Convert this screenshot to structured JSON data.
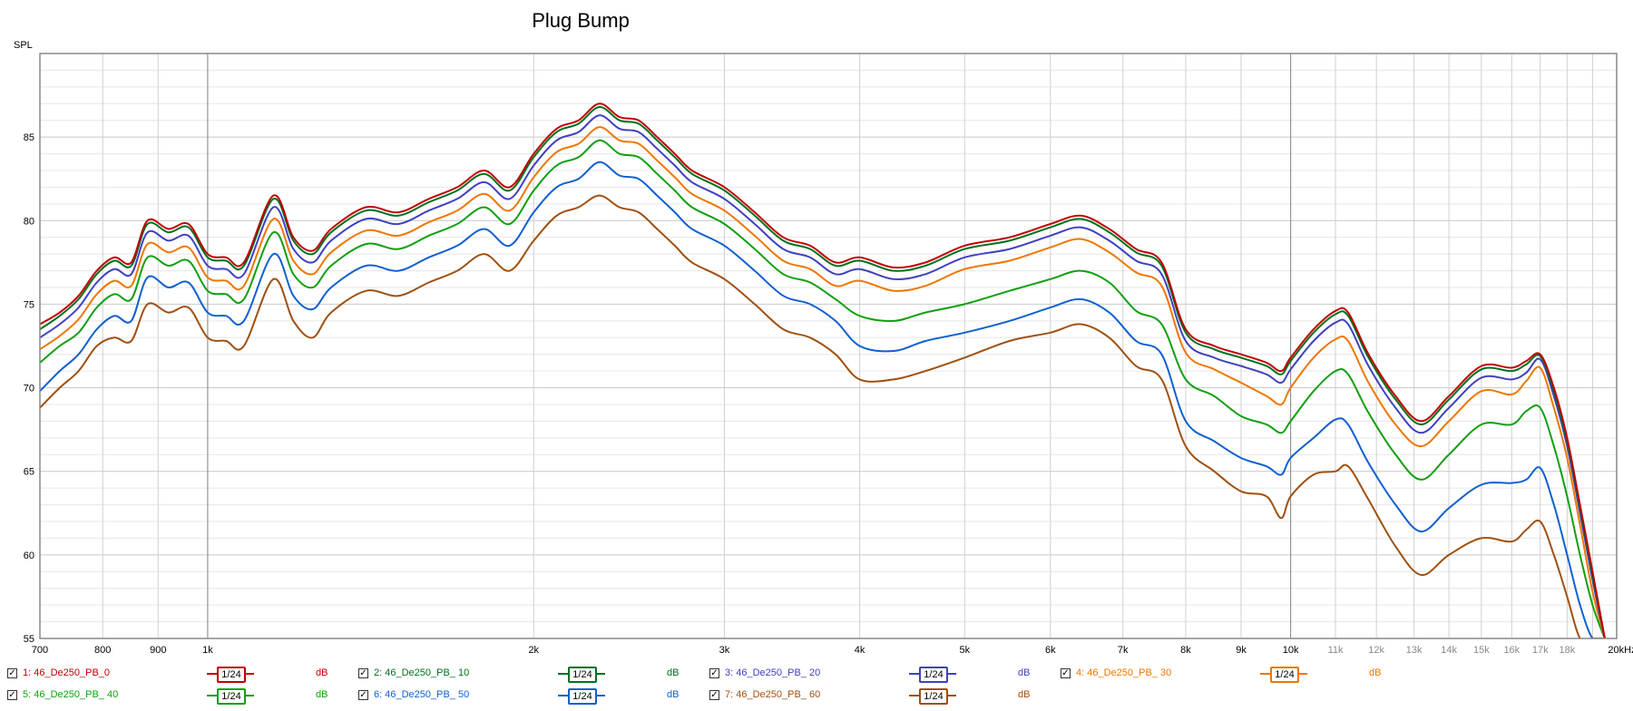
{
  "chart_data": {
    "type": "line",
    "title": "Plug Bump",
    "ylabel": "SPL",
    "xlabel": "",
    "xscale": "log",
    "xlim": [
      700,
      20000
    ],
    "ylim": [
      55,
      90
    ],
    "grid": true,
    "xticks": [
      {
        "value": 700,
        "label": "700",
        "style": "major"
      },
      {
        "value": 800,
        "label": "800",
        "style": "major"
      },
      {
        "value": 900,
        "label": "900",
        "style": "major"
      },
      {
        "value": 1000,
        "label": "1k",
        "style": "major"
      },
      {
        "value": 2000,
        "label": "2k",
        "style": "major"
      },
      {
        "value": 3000,
        "label": "3k",
        "style": "major"
      },
      {
        "value": 4000,
        "label": "4k",
        "style": "major"
      },
      {
        "value": 5000,
        "label": "5k",
        "style": "major"
      },
      {
        "value": 6000,
        "label": "6k",
        "style": "major"
      },
      {
        "value": 7000,
        "label": "7k",
        "style": "major"
      },
      {
        "value": 8000,
        "label": "8k",
        "style": "major"
      },
      {
        "value": 9000,
        "label": "9k",
        "style": "major"
      },
      {
        "value": 10000,
        "label": "10k",
        "style": "major"
      },
      {
        "value": 11000,
        "label": "11k",
        "style": "minor"
      },
      {
        "value": 12000,
        "label": "12k",
        "style": "minor"
      },
      {
        "value": 13000,
        "label": "13k",
        "style": "minor"
      },
      {
        "value": 14000,
        "label": "14k",
        "style": "minor"
      },
      {
        "value": 15000,
        "label": "15k",
        "style": "minor"
      },
      {
        "value": 16000,
        "label": "16k",
        "style": "minor"
      },
      {
        "value": 17000,
        "label": "17k",
        "style": "minor"
      },
      {
        "value": 18000,
        "label": "18k",
        "style": "minor"
      },
      {
        "value": 20000,
        "label": "20kHz",
        "style": "major"
      }
    ],
    "yticks": [
      {
        "value": 55,
        "label": "55"
      },
      {
        "value": 60,
        "label": "60"
      },
      {
        "value": 65,
        "label": "65"
      },
      {
        "value": 70,
        "label": "70"
      },
      {
        "value": 75,
        "label": "75"
      },
      {
        "value": 80,
        "label": "80"
      },
      {
        "value": 85,
        "label": "85"
      }
    ],
    "x": [
      700,
      730,
      760,
      790,
      820,
      850,
      880,
      920,
      960,
      1000,
      1040,
      1080,
      1150,
      1200,
      1250,
      1300,
      1400,
      1500,
      1600,
      1700,
      1800,
      1900,
      2000,
      2100,
      2200,
      2300,
      2400,
      2500,
      2600,
      2700,
      2800,
      3000,
      3200,
      3400,
      3600,
      3800,
      4000,
      4300,
      4600,
      5000,
      5500,
      6000,
      6400,
      6800,
      7200,
      7600,
      8000,
      8500,
      9000,
      9500,
      9800,
      10000,
      10500,
      11000,
      11300,
      11800,
      12500,
      13200,
      14000,
      15000,
      16000,
      16500,
      17000,
      17500,
      18000,
      18500,
      19000,
      19500
    ],
    "series": [
      {
        "name": "1: 46_De250_PB_0",
        "color": "#c00000",
        "values": [
          73.8,
          74.5,
          75.5,
          77.0,
          77.8,
          77.5,
          80.0,
          79.5,
          79.8,
          78.0,
          77.8,
          77.5,
          81.5,
          79.0,
          78.2,
          79.5,
          80.8,
          80.5,
          81.3,
          82.0,
          83.0,
          82.0,
          84.0,
          85.5,
          86.0,
          87.0,
          86.2,
          86.0,
          85.0,
          84.0,
          83.0,
          82.0,
          80.5,
          79.0,
          78.5,
          77.5,
          77.8,
          77.2,
          77.5,
          78.5,
          79.0,
          79.8,
          80.3,
          79.5,
          78.3,
          77.5,
          73.5,
          72.5,
          72.0,
          71.5,
          71.0,
          71.8,
          73.5,
          74.6,
          74.5,
          72.0,
          69.5,
          68.0,
          69.5,
          71.3,
          71.2,
          71.6,
          72.0,
          70.0,
          67.0,
          63.0,
          59.0,
          55.0
        ]
      },
      {
        "name": "2: 46_De250_PB_ 10",
        "color": "#007020",
        "values": [
          73.5,
          74.3,
          75.3,
          76.8,
          77.6,
          77.3,
          79.8,
          79.3,
          79.6,
          77.8,
          77.6,
          77.3,
          81.3,
          78.8,
          78.0,
          79.3,
          80.6,
          80.3,
          81.1,
          81.8,
          82.8,
          81.8,
          83.8,
          85.3,
          85.8,
          86.8,
          86.0,
          85.8,
          84.8,
          83.8,
          82.8,
          81.8,
          80.3,
          78.8,
          78.3,
          77.3,
          77.6,
          77.0,
          77.3,
          78.3,
          78.8,
          79.6,
          80.1,
          79.3,
          78.1,
          77.3,
          73.3,
          72.3,
          71.8,
          71.3,
          70.8,
          71.6,
          73.3,
          74.4,
          74.3,
          71.8,
          69.3,
          67.8,
          69.3,
          71.1,
          71.0,
          71.4,
          71.9,
          69.8,
          66.8,
          62.8,
          58.8,
          55.0
        ]
      },
      {
        "name": "3: 46_De250_PB_ 20",
        "color": "#4040c0",
        "values": [
          73.0,
          73.8,
          74.8,
          76.3,
          77.1,
          76.8,
          79.3,
          78.8,
          79.1,
          77.3,
          77.1,
          76.8,
          80.8,
          78.3,
          77.5,
          78.8,
          80.1,
          79.8,
          80.6,
          81.3,
          82.3,
          81.3,
          83.3,
          84.8,
          85.3,
          86.3,
          85.5,
          85.3,
          84.3,
          83.3,
          82.3,
          81.3,
          79.8,
          78.3,
          77.8,
          76.8,
          77.1,
          76.5,
          76.8,
          77.8,
          78.3,
          79.1,
          79.6,
          78.8,
          77.6,
          76.8,
          72.8,
          71.8,
          71.3,
          70.8,
          70.3,
          71.1,
          72.8,
          73.9,
          73.8,
          71.3,
          68.8,
          67.3,
          68.8,
          70.6,
          70.5,
          70.9,
          71.7,
          69.5,
          66.5,
          62.5,
          58.5,
          55.0
        ]
      },
      {
        "name": "4: 46_De250_PB_30",
        "color": "#ee7700",
        "values": [
          72.3,
          73.1,
          74.1,
          75.6,
          76.4,
          76.1,
          78.6,
          78.1,
          78.4,
          76.6,
          76.4,
          76.1,
          80.1,
          77.6,
          76.8,
          78.1,
          79.4,
          79.1,
          79.9,
          80.6,
          81.6,
          80.6,
          82.6,
          84.1,
          84.6,
          85.6,
          84.8,
          84.6,
          83.6,
          82.6,
          81.6,
          80.6,
          79.1,
          77.6,
          77.1,
          76.1,
          76.4,
          75.8,
          76.1,
          77.1,
          77.6,
          78.4,
          78.9,
          78.1,
          76.9,
          76.1,
          72.1,
          71.1,
          70.3,
          69.5,
          69.0,
          70.0,
          71.8,
          72.9,
          72.8,
          70.3,
          67.8,
          66.5,
          68.0,
          69.8,
          69.6,
          70.4,
          71.2,
          68.8,
          65.8,
          61.8,
          57.8,
          55.0
        ]
      },
      {
        "name": "5: 46_De250_PB_ 40",
        "color": "#10a010",
        "values": [
          71.5,
          72.5,
          73.3,
          74.8,
          75.6,
          75.3,
          77.8,
          77.3,
          77.6,
          75.8,
          75.6,
          75.3,
          79.3,
          76.8,
          76.0,
          77.3,
          78.6,
          78.3,
          79.1,
          79.8,
          80.8,
          79.8,
          81.8,
          83.3,
          83.8,
          84.8,
          84.0,
          83.8,
          82.8,
          81.8,
          80.8,
          79.8,
          78.3,
          76.8,
          76.3,
          75.3,
          74.3,
          74.0,
          74.5,
          75.0,
          75.8,
          76.5,
          77.0,
          76.3,
          74.6,
          73.8,
          70.5,
          69.5,
          68.3,
          67.8,
          67.3,
          68.0,
          69.8,
          71.0,
          70.8,
          68.5,
          66.0,
          64.5,
          66.0,
          67.8,
          67.8,
          68.6,
          68.8,
          66.5,
          63.5,
          60.0,
          57.0,
          55.0
        ]
      },
      {
        "name": "6: 46_De250_PB_ 50",
        "color": "#1060d0",
        "values": [
          69.8,
          71.0,
          72.0,
          73.5,
          74.3,
          74.0,
          76.6,
          76.0,
          76.3,
          74.5,
          74.3,
          74.0,
          78.0,
          75.5,
          74.7,
          76.0,
          77.3,
          77.0,
          77.8,
          78.5,
          79.5,
          78.5,
          80.5,
          82.0,
          82.5,
          83.5,
          82.7,
          82.5,
          81.5,
          80.5,
          79.5,
          78.5,
          77.0,
          75.5,
          75.0,
          74.0,
          72.5,
          72.2,
          72.8,
          73.3,
          74.0,
          74.8,
          75.3,
          74.5,
          72.8,
          72.0,
          68.0,
          66.8,
          65.8,
          65.3,
          64.8,
          65.8,
          67.0,
          68.1,
          67.8,
          65.5,
          63.0,
          61.4,
          62.8,
          64.2,
          64.3,
          64.5,
          65.2,
          63.0,
          60.0,
          57.0,
          55.0,
          55.0
        ]
      },
      {
        "name": "7: 46_De250_PB_60",
        "color": "#a05010",
        "values": [
          68.8,
          70.0,
          71.0,
          72.5,
          73.0,
          72.8,
          75.0,
          74.5,
          74.8,
          73.0,
          72.8,
          72.5,
          76.5,
          74.0,
          73.0,
          74.5,
          75.8,
          75.5,
          76.3,
          77.0,
          78.0,
          77.0,
          78.8,
          80.3,
          80.8,
          81.5,
          80.8,
          80.5,
          79.5,
          78.5,
          77.5,
          76.5,
          75.0,
          73.5,
          73.0,
          72.0,
          70.5,
          70.5,
          71.0,
          71.8,
          72.8,
          73.3,
          73.8,
          73.0,
          71.3,
          70.5,
          66.5,
          65.0,
          63.8,
          63.5,
          62.2,
          63.5,
          64.8,
          65.0,
          65.3,
          63.3,
          60.5,
          58.8,
          60.0,
          61.0,
          60.8,
          61.5,
          62.0,
          60.0,
          57.5,
          55.0,
          55.0,
          55.0
        ]
      }
    ],
    "legend": {
      "placement": "bottom",
      "smoothing_label": "1/24",
      "unit_label": "dB",
      "items": [
        {
          "name": "1: 46_De250_PB_0",
          "color": "#c00000",
          "checked": true
        },
        {
          "name": "2: 46_De250_PB_ 10",
          "color": "#007020",
          "checked": true
        },
        {
          "name": "3: 46_De250_PB_ 20",
          "color": "#4040c0",
          "checked": true
        },
        {
          "name": "4: 46_De250_PB_ 30",
          "color": "#ee7700",
          "checked": true
        },
        {
          "name": "5: 46_De250_PB_ 40",
          "color": "#10a010",
          "checked": true
        },
        {
          "name": "6: 46_De250_PB_ 50",
          "color": "#1060d0",
          "checked": true
        },
        {
          "name": "7: 46_De250_PB_ 60",
          "color": "#a05010",
          "checked": true
        }
      ]
    }
  }
}
